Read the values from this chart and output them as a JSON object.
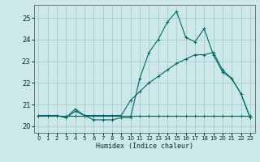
{
  "xlabel": "Humidex (Indice chaleur)",
  "bg_color": "#cce8e8",
  "grid_color": "#aacece",
  "line_color": "#006868",
  "xlim": [
    -0.5,
    23.5
  ],
  "ylim": [
    19.7,
    25.6
  ],
  "yticks": [
    20,
    21,
    22,
    23,
    24,
    25
  ],
  "xticks": [
    0,
    1,
    2,
    3,
    4,
    5,
    6,
    7,
    8,
    9,
    10,
    11,
    12,
    13,
    14,
    15,
    16,
    17,
    18,
    19,
    20,
    21,
    22,
    23
  ],
  "series1_x": [
    0,
    1,
    2,
    3,
    4,
    5,
    6,
    7,
    8,
    9,
    10,
    11,
    12,
    13,
    14,
    15,
    16,
    17,
    18,
    19,
    20,
    21,
    22,
    23
  ],
  "series1_y": [
    20.5,
    20.5,
    20.5,
    20.4,
    20.7,
    20.5,
    20.3,
    20.3,
    20.3,
    20.4,
    20.4,
    22.2,
    23.4,
    24.0,
    24.8,
    25.3,
    24.1,
    23.9,
    24.5,
    23.3,
    22.5,
    22.2,
    21.5,
    20.4
  ],
  "series2_x": [
    0,
    1,
    2,
    3,
    4,
    5,
    6,
    7,
    8,
    9,
    10,
    11,
    12,
    13,
    14,
    15,
    16,
    17,
    18,
    19,
    20,
    21,
    22,
    23
  ],
  "series2_y": [
    20.5,
    20.5,
    20.5,
    20.5,
    20.5,
    20.5,
    20.5,
    20.5,
    20.5,
    20.5,
    20.5,
    20.5,
    20.5,
    20.5,
    20.5,
    20.5,
    20.5,
    20.5,
    20.5,
    20.5,
    20.5,
    20.5,
    20.5,
    20.5
  ],
  "series3_x": [
    0,
    1,
    2,
    3,
    4,
    5,
    6,
    7,
    8,
    9,
    10,
    11,
    12,
    13,
    14,
    15,
    16,
    17,
    18,
    19,
    20,
    21,
    22,
    23
  ],
  "series3_y": [
    20.5,
    20.5,
    20.5,
    20.4,
    20.8,
    20.5,
    20.5,
    20.5,
    20.5,
    20.5,
    21.2,
    21.6,
    22.0,
    22.3,
    22.6,
    22.9,
    23.1,
    23.3,
    23.3,
    23.4,
    22.6,
    22.2,
    21.5,
    20.4
  ]
}
